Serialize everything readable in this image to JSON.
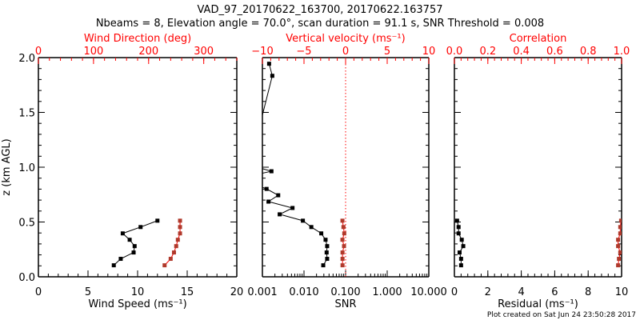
{
  "colors": {
    "primary": "#000000",
    "secondary_line": "#ff0000",
    "secondary_marker": "#b0392b",
    "zero_line": "#ff0000"
  },
  "chart_data": {
    "type": "line",
    "title": "VAD_97_20170622_163700, 20170622.163757",
    "subtitle": "Nbeams = 8, Elevation angle = 70.0°, scan duration = 91.1 s, SNR Threshold = 0.008",
    "ylabel": "z (km AGL)",
    "ylim": [
      0,
      2
    ],
    "yticks": [
      "0.0",
      "0.5",
      "1.0",
      "1.5",
      "2.0"
    ],
    "footer": "Plot created on Sat Jun 24 23:50:28 2017",
    "panels": [
      {
        "bottom_label": "Wind Speed (ms⁻¹)",
        "bottom_range": [
          0,
          20
        ],
        "bottom_scale": "linear",
        "bottom_ticks": [
          0,
          5,
          10,
          15,
          20
        ],
        "bottom_tick_labels": [
          "0",
          "5",
          "10",
          "15",
          "20"
        ],
        "top_label": "Wind Direction (deg)",
        "top_range": [
          0,
          360
        ],
        "top_ticks": [
          0,
          100,
          200,
          300
        ],
        "top_tick_labels": [
          "0",
          "100",
          "200",
          "300"
        ],
        "series": [
          {
            "name": "Wind Speed",
            "axis": "bottom",
            "color": "black",
            "z": [
              0.105,
              0.164,
              0.222,
              0.28,
              0.338,
              0.396,
              0.454,
              0.512
            ],
            "values": [
              7.6,
              8.3,
              9.6,
              9.7,
              9.2,
              8.5,
              10.3,
              12.0
            ]
          },
          {
            "name": "Wind Direction",
            "axis": "top",
            "color": "red",
            "z": [
              0.105,
              0.164,
              0.222,
              0.28,
              0.338,
              0.396,
              0.454,
              0.512
            ],
            "values": [
              229,
              240,
              246,
              250,
              253,
              257,
              257,
              257
            ]
          }
        ]
      },
      {
        "bottom_label": "SNR",
        "bottom_range": [
          0.001,
          10
        ],
        "bottom_scale": "log",
        "bottom_ticks": [
          0.001,
          0.01,
          0.1,
          1,
          10
        ],
        "bottom_tick_labels": [
          "0.001",
          "0.010",
          "0.100",
          "1.000",
          "10.000"
        ],
        "top_label": "Vertical velocity (ms⁻¹)",
        "top_range": [
          -10,
          10
        ],
        "top_ticks": [
          -10,
          -5,
          0,
          5,
          10
        ],
        "top_tick_labels": [
          "−10",
          "−5",
          "0",
          "5",
          "10"
        ],
        "zero_line": 0,
        "series": [
          {
            "name": "SNR",
            "axis": "bottom",
            "color": "black",
            "z": [
              0.105,
              0.164,
              0.222,
              0.28,
              0.338,
              0.396,
              0.454,
              0.512,
              0.57,
              0.628,
              0.686,
              0.744,
              0.802,
              0.86,
              0.92,
              0.963,
              1.02,
              1.834,
              1.944
            ],
            "values": [
              0.029,
              0.036,
              0.035,
              0.036,
              0.033,
              0.026,
              0.015,
              0.0094,
              0.0026,
              0.0053,
              0.0014,
              0.0024,
              0.00126,
              0.0005,
              0.0005,
              0.00165,
              0.0005,
              0.00173,
              0.00145
            ]
          },
          {
            "name": "Vertical velocity",
            "axis": "top",
            "color": "red",
            "z": [
              0.105,
              0.164,
              0.222,
              0.28,
              0.338,
              0.396,
              0.454,
              0.512
            ],
            "values": [
              -0.37,
              -0.37,
              -0.37,
              -0.19,
              -0.38,
              -0.16,
              -0.26,
              -0.38
            ]
          }
        ]
      },
      {
        "bottom_label": "Residual (ms⁻¹)",
        "bottom_range": [
          0,
          10
        ],
        "bottom_scale": "linear",
        "bottom_ticks": [
          0,
          2,
          4,
          6,
          8,
          10
        ],
        "bottom_tick_labels": [
          "0",
          "2",
          "4",
          "6",
          "8",
          "10"
        ],
        "top_label": "Correlation",
        "top_range": [
          0,
          1
        ],
        "top_ticks": [
          0,
          0.2,
          0.4,
          0.6,
          0.8,
          1.0
        ],
        "top_tick_labels": [
          "0.0",
          "0.2",
          "0.4",
          "0.6",
          "0.8",
          "1.0"
        ],
        "series": [
          {
            "name": "Residual",
            "axis": "bottom",
            "color": "black",
            "z": [
              0.105,
              0.164,
              0.222,
              0.28,
              0.338,
              0.396,
              0.454,
              0.512
            ],
            "values": [
              0.4,
              0.4,
              0.31,
              0.53,
              0.44,
              0.25,
              0.25,
              0.16
            ]
          },
          {
            "name": "Correlation",
            "axis": "top",
            "color": "red",
            "z": [
              0.105,
              0.164,
              0.222,
              0.28,
              0.338,
              0.396,
              0.454,
              0.512
            ],
            "values": [
              0.979,
              0.984,
              0.992,
              0.979,
              0.979,
              0.992,
              0.992,
              0.997
            ]
          }
        ]
      }
    ]
  }
}
